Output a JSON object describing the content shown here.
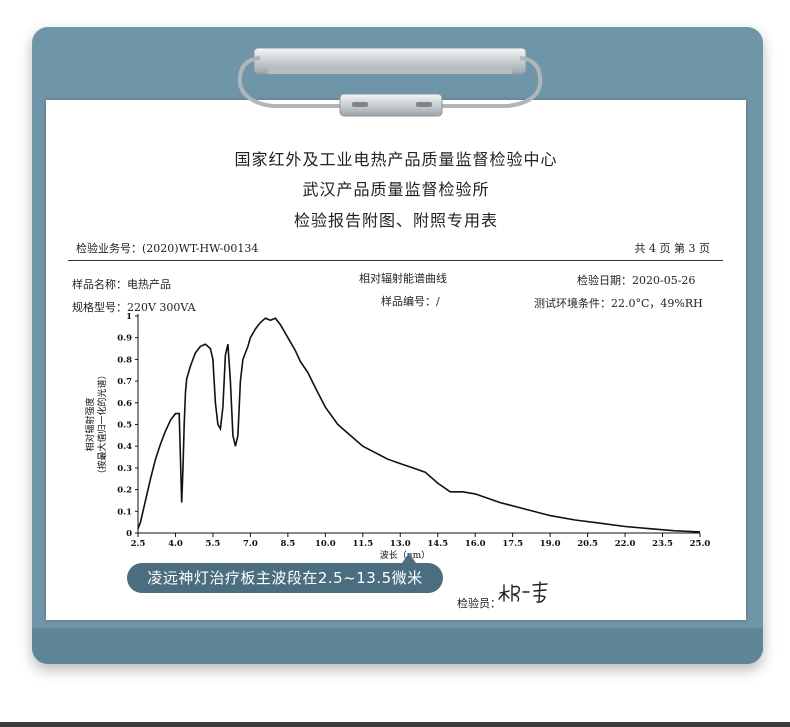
{
  "report": {
    "title_line1": "国家红外及工业电热产品质量监督检验中心",
    "title_line2": "武汉产品质量监督检验所",
    "title_line3": "检验报告附图、附照专用表",
    "task_no": "检验业务号：(2020)WT-HW-00134",
    "page_info": "共 4 页 第 3 页",
    "sample_name": "样品名称：电热产品",
    "spec": "规格型号：220V 300VA",
    "sample_no": "样品编号：/",
    "check_date": "检验日期：2020-05-26",
    "env": "测试环境条件：22.0°C，49%RH",
    "inspector_label": "检验员："
  },
  "callout": {
    "text": "凌远神灯治疗板主波段在2.5~13.5微米"
  },
  "colors": {
    "board": "#6f96a8",
    "callout": "#4a6e80",
    "curve": "#111111"
  },
  "chart_data": {
    "type": "line",
    "title": "相对辐射能谱曲线",
    "xlabel": "波长（μm）",
    "ylabel_line1": "相对辐射强度",
    "ylabel_line2": "（按最大值归一化的光谱）",
    "xlim": [
      2.5,
      25.0
    ],
    "ylim": [
      0,
      1
    ],
    "x_ticks": [
      "2.5",
      "4.0",
      "5.5",
      "7.0",
      "8.5",
      "10.0",
      "11.5",
      "13.0",
      "14.5",
      "16.0",
      "17.5",
      "19.0",
      "20.5",
      "22.0",
      "23.5",
      "25.0"
    ],
    "y_ticks": [
      "0",
      "0.1",
      "0.2",
      "0.3",
      "0.4",
      "0.5",
      "0.6",
      "0.7",
      "0.8",
      "0.9",
      "1"
    ],
    "grid": false,
    "series": [
      {
        "x": [
          2.5,
          2.6,
          2.8,
          3.0,
          3.2,
          3.4,
          3.6,
          3.8,
          4.0,
          4.15,
          4.25,
          4.3,
          4.35,
          4.4,
          4.45,
          4.6,
          4.8,
          5.0,
          5.2,
          5.4,
          5.5,
          5.6,
          5.7,
          5.8,
          5.9,
          6.0,
          6.1,
          6.2,
          6.3,
          6.4,
          6.5,
          6.6,
          6.7,
          6.8,
          6.9,
          7.0,
          7.2,
          7.4,
          7.6,
          7.8,
          8.0,
          8.2,
          8.5,
          8.8,
          9.0,
          9.3,
          9.6,
          10.0,
          10.5,
          11.0,
          11.5,
          12.0,
          12.5,
          13.0,
          13.5,
          14.0,
          14.5,
          15.0,
          15.5,
          16.0,
          16.5,
          17.0,
          18.0,
          19.0,
          20.0,
          21.0,
          22.0,
          23.0,
          24.0,
          25.0
        ],
        "y": [
          0.02,
          0.05,
          0.15,
          0.25,
          0.34,
          0.41,
          0.47,
          0.52,
          0.55,
          0.55,
          0.14,
          0.3,
          0.5,
          0.65,
          0.71,
          0.77,
          0.83,
          0.86,
          0.87,
          0.85,
          0.8,
          0.6,
          0.5,
          0.48,
          0.58,
          0.82,
          0.87,
          0.7,
          0.45,
          0.4,
          0.45,
          0.7,
          0.8,
          0.83,
          0.86,
          0.9,
          0.94,
          0.97,
          0.99,
          0.98,
          0.99,
          0.96,
          0.9,
          0.84,
          0.79,
          0.74,
          0.67,
          0.58,
          0.5,
          0.45,
          0.4,
          0.37,
          0.34,
          0.32,
          0.3,
          0.28,
          0.23,
          0.19,
          0.19,
          0.18,
          0.16,
          0.14,
          0.11,
          0.08,
          0.06,
          0.045,
          0.03,
          0.02,
          0.01,
          0.005
        ]
      }
    ]
  }
}
